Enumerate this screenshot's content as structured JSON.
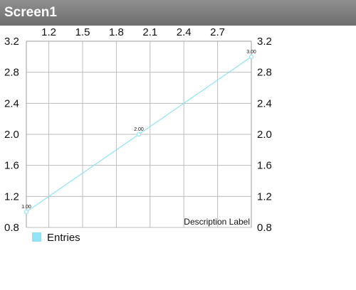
{
  "window": {
    "title": "Screen1"
  },
  "colors": {
    "titlebar": "#7d7d7d",
    "series": "#8fe3f5",
    "grid": "#bdbdbd"
  },
  "chart_data": {
    "type": "line",
    "title": "",
    "description": "Description Label",
    "series": [
      {
        "name": "Entries",
        "x": [
          1.0,
          2.0,
          3.0
        ],
        "y": [
          1.0,
          2.0,
          3.0
        ],
        "labels": [
          "1.00",
          "2.00",
          "3.00"
        ]
      }
    ],
    "xlim": [
      1.0,
      3.0
    ],
    "xticks": [
      1.2,
      1.5,
      1.8,
      2.1,
      2.4,
      2.7
    ],
    "xtick_labels": [
      "1.2",
      "1.5",
      "1.8",
      "2.1",
      "2.4",
      "2.7"
    ],
    "ylim": [
      0.8,
      3.2
    ],
    "yticks": [
      0.8,
      1.2,
      1.6,
      2.0,
      2.4,
      2.8,
      3.2
    ],
    "ytick_labels": [
      "0.8",
      "1.2",
      "1.6",
      "2.0",
      "2.4",
      "2.8",
      "3.2"
    ],
    "grid": true,
    "legend_position": "bottom-left"
  }
}
